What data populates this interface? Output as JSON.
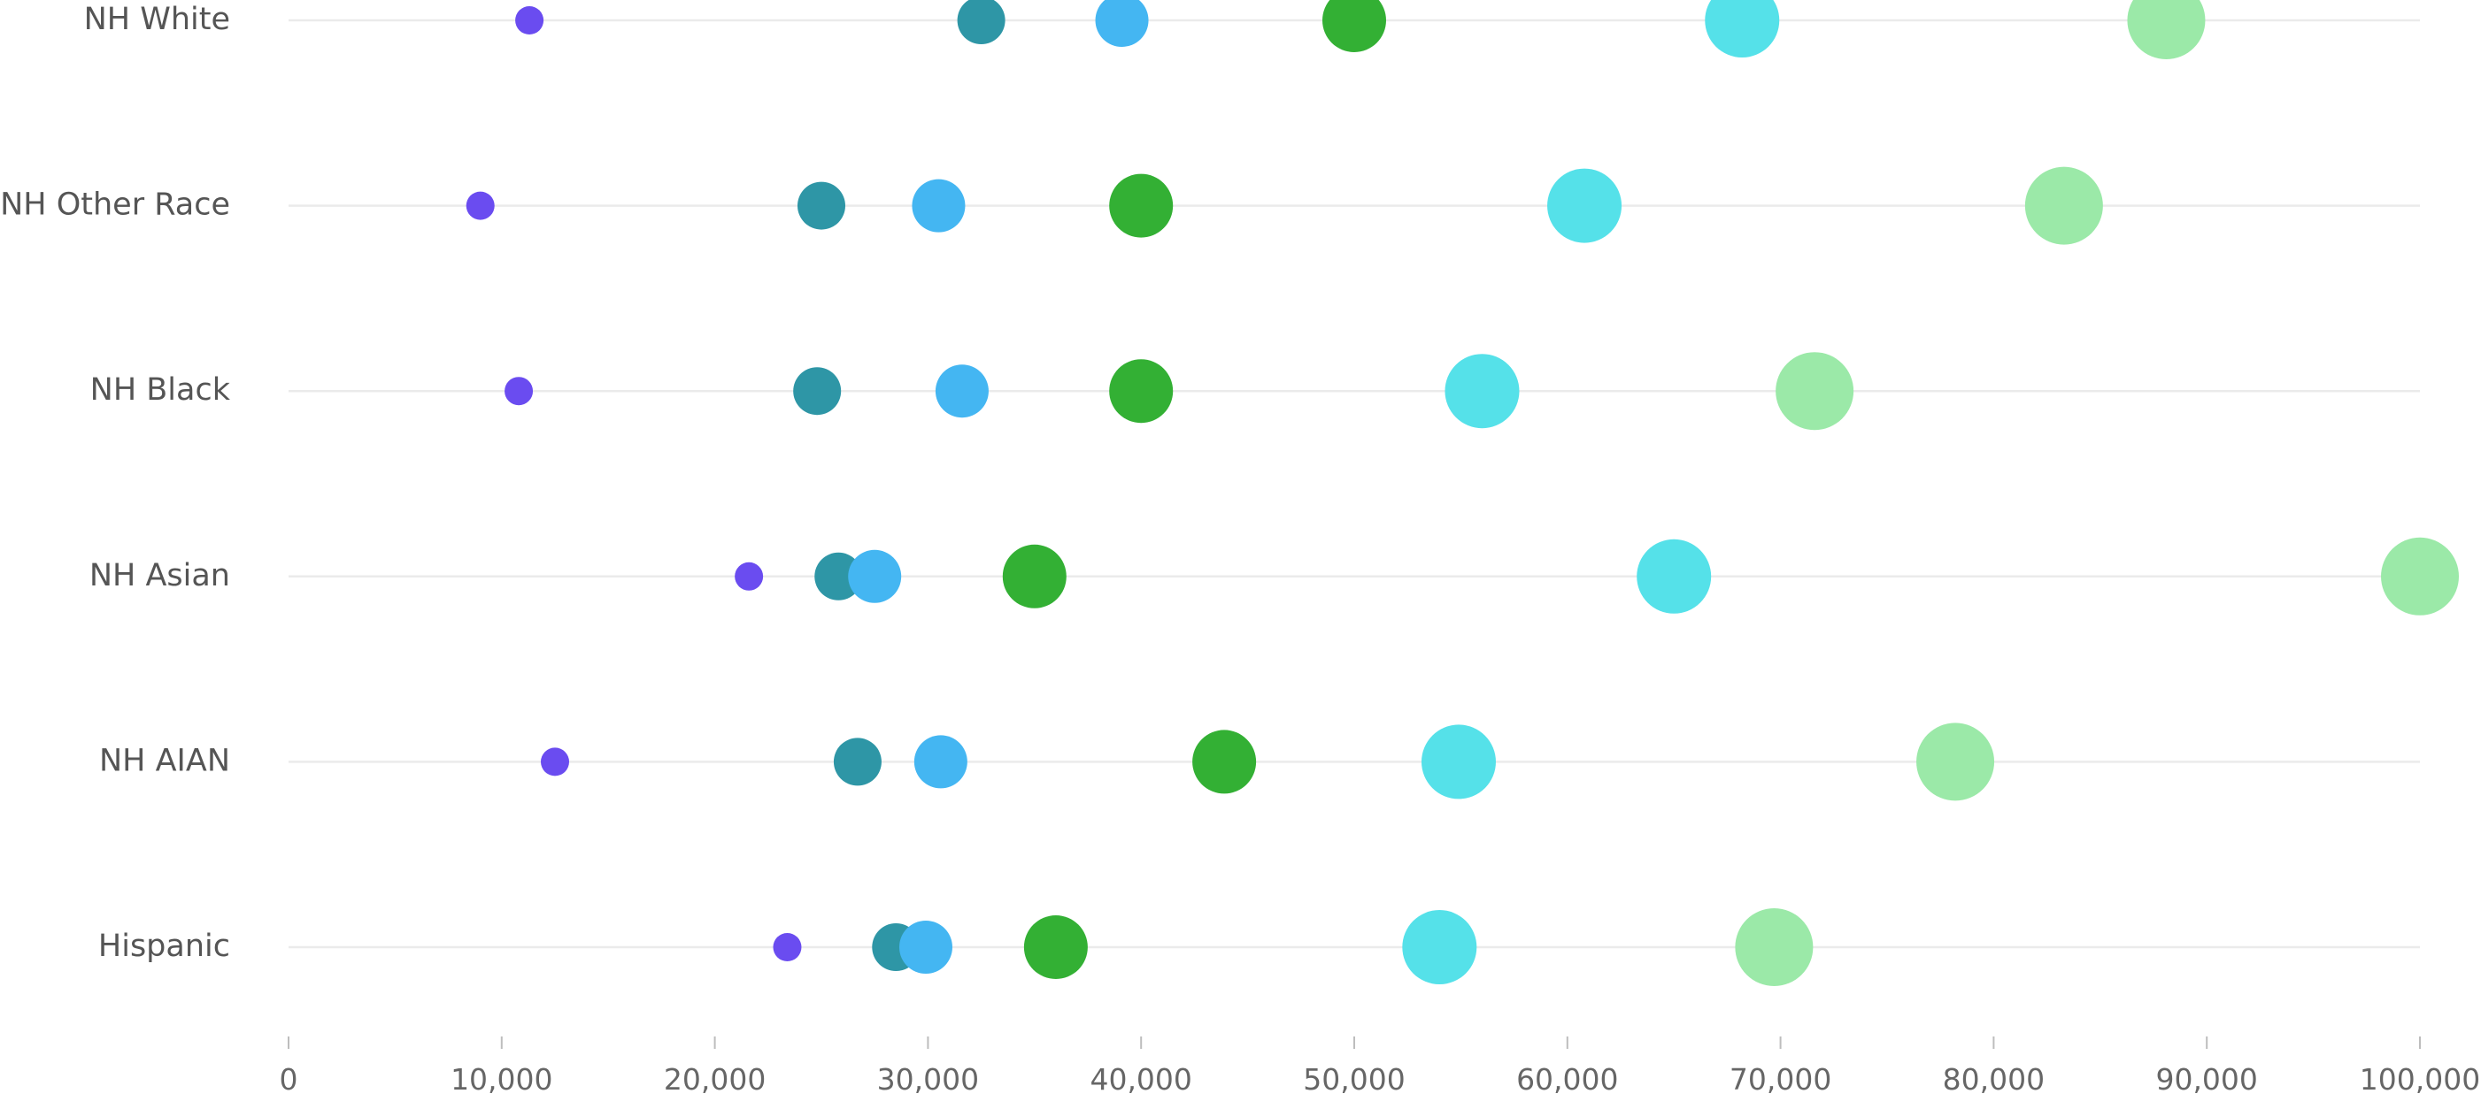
{
  "chart_data": {
    "type": "scatter",
    "title": "",
    "xlabel": "",
    "ylabel": "",
    "xlim": [
      0,
      100000
    ],
    "x_ticks": [
      0,
      10000,
      20000,
      30000,
      40000,
      50000,
      60000,
      70000,
      80000,
      90000,
      100000
    ],
    "x_tick_labels": [
      "0",
      "10,000",
      "20,000",
      "30,000",
      "40,000",
      "50,000",
      "60,000",
      "70,000",
      "80,000",
      "90,000",
      "100,000"
    ],
    "categories": [
      "NH White",
      "NH Other Race",
      "NH Black",
      "NH Asian",
      "NH AIAN",
      "Hispanic"
    ],
    "grid": true,
    "legend": "none",
    "series": [
      {
        "color": "#6a4cf0",
        "rel_size": 1,
        "values": [
          11300,
          9000,
          10800,
          21600,
          12500,
          23400
        ]
      },
      {
        "color": "#2e96a6",
        "rel_size": 2,
        "values": [
          32500,
          25000,
          24800,
          25800,
          26700,
          28500
        ]
      },
      {
        "color": "#44b6f2",
        "rel_size": 3,
        "values": [
          39100,
          30500,
          31600,
          27500,
          30600,
          29900
        ]
      },
      {
        "color": "#33b034",
        "rel_size": 4,
        "values": [
          50000,
          40000,
          40000,
          35000,
          43900,
          36000
        ]
      },
      {
        "color": "#55e1e9",
        "rel_size": 5,
        "values": [
          68200,
          60800,
          56000,
          65000,
          54900,
          54000
        ]
      },
      {
        "color": "#9be9a8",
        "rel_size": 6,
        "values": [
          88100,
          83300,
          71600,
          100000,
          78200,
          69700
        ]
      }
    ]
  }
}
